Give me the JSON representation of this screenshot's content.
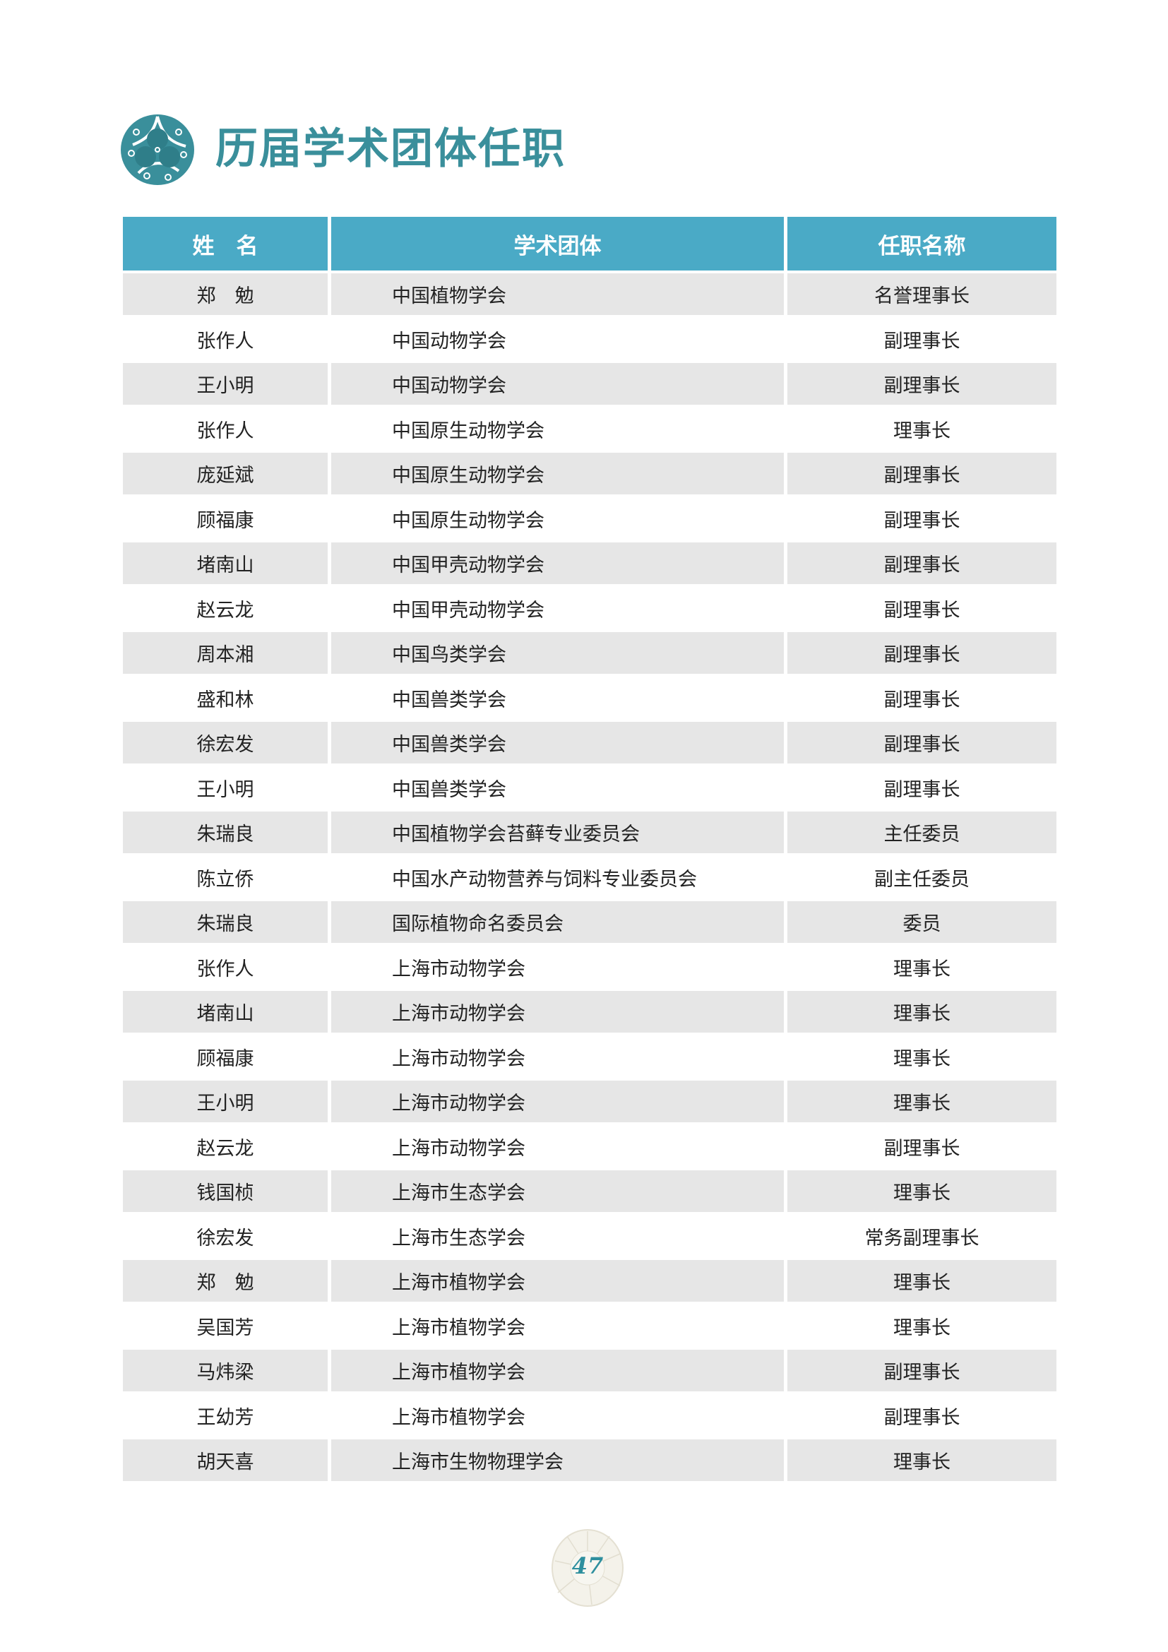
{
  "title": "历届学术团体任职",
  "colors": {
    "accent": "#3a8f9b",
    "header_bg": "#4aaac6",
    "row_shade": "#e6e6e6"
  },
  "table": {
    "headers": [
      "姓　名",
      "学术团体",
      "任职名称"
    ],
    "rows": [
      [
        "郑　勉",
        "中国植物学会",
        "名誉理事长"
      ],
      [
        "张作人",
        "中国动物学会",
        "副理事长"
      ],
      [
        "王小明",
        "中国动物学会",
        "副理事长"
      ],
      [
        "张作人",
        "中国原生动物学会",
        "理事长"
      ],
      [
        "庞延斌",
        "中国原生动物学会",
        "副理事长"
      ],
      [
        "顾福康",
        "中国原生动物学会",
        "副理事长"
      ],
      [
        "堵南山",
        "中国甲壳动物学会",
        "副理事长"
      ],
      [
        "赵云龙",
        "中国甲壳动物学会",
        "副理事长"
      ],
      [
        "周本湘",
        "中国鸟类学会",
        "副理事长"
      ],
      [
        "盛和林",
        "中国兽类学会",
        "副理事长"
      ],
      [
        "徐宏发",
        "中国兽类学会",
        "副理事长"
      ],
      [
        "王小明",
        "中国兽类学会",
        "副理事长"
      ],
      [
        "朱瑞良",
        "中国植物学会苔藓专业委员会",
        "主任委员"
      ],
      [
        "陈立侨",
        "中国水产动物营养与饲料专业委员会",
        "副主任委员"
      ],
      [
        "朱瑞良",
        "国际植物命名委员会",
        "委员"
      ],
      [
        "张作人",
        "上海市动物学会",
        "理事长"
      ],
      [
        "堵南山",
        "上海市动物学会",
        "理事长"
      ],
      [
        "顾福康",
        "上海市动物学会",
        "理事长"
      ],
      [
        "王小明",
        "上海市动物学会",
        "理事长"
      ],
      [
        "赵云龙",
        "上海市动物学会",
        "副理事长"
      ],
      [
        "钱国桢",
        "上海市生态学会",
        "理事长"
      ],
      [
        "徐宏发",
        "上海市生态学会",
        "常务副理事长"
      ],
      [
        "郑　勉",
        "上海市植物学会",
        "理事长"
      ],
      [
        "吴国芳",
        "上海市植物学会",
        "理事长"
      ],
      [
        "马炜梁",
        "上海市植物学会",
        "副理事长"
      ],
      [
        "王幼芳",
        "上海市植物学会",
        "副理事长"
      ],
      [
        "胡天喜",
        "上海市生物物理学会",
        "理事长"
      ]
    ]
  },
  "page_number": "47"
}
